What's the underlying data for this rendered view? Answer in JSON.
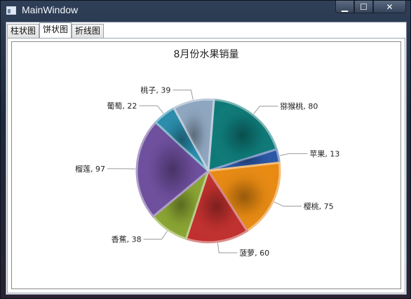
{
  "window": {
    "title": "MainWindow",
    "controls": {
      "minimize": "▁",
      "maximize": "☐",
      "close": "✕"
    }
  },
  "tabs": [
    {
      "label": "柱状图",
      "active": false
    },
    {
      "label": "饼状图",
      "active": true
    },
    {
      "label": "折线图",
      "active": false
    }
  ],
  "chart_data": {
    "type": "pie",
    "title": "8月份水果销量",
    "legend": "none",
    "slices": [
      {
        "label": "猕猴桃",
        "value": 80,
        "color": "#0e7a78"
      },
      {
        "label": "苹果",
        "value": 13,
        "color": "#2b57a6"
      },
      {
        "label": "樱桃",
        "value": 75,
        "color": "#e88a12"
      },
      {
        "label": "菠萝",
        "value": 60,
        "color": "#c0302e"
      },
      {
        "label": "香蕉",
        "value": 38,
        "color": "#8aa532"
      },
      {
        "label": "榴莲",
        "value": 97,
        "color": "#6e4f9e"
      },
      {
        "label": "葡萄",
        "value": 22,
        "color": "#2a8cac"
      },
      {
        "label": "桃子",
        "value": 39,
        "color": "#8ea6bf"
      }
    ]
  }
}
